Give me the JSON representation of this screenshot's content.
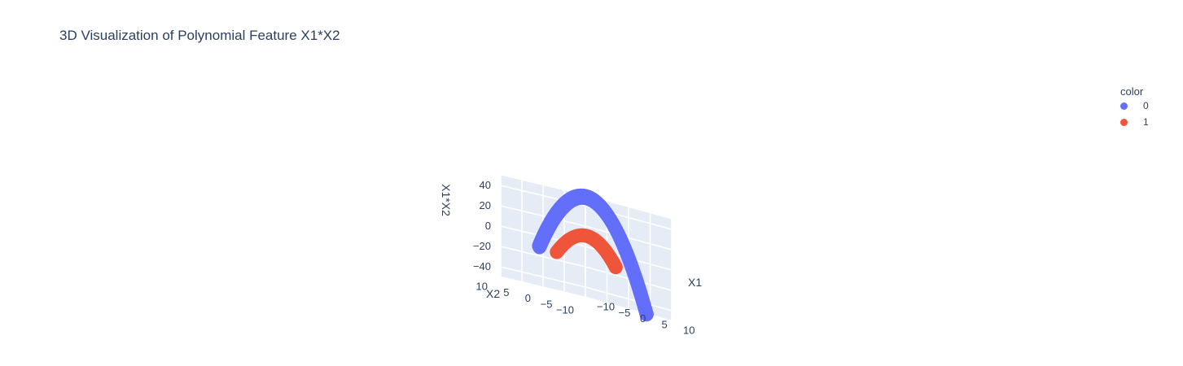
{
  "chart_data": {
    "type": "scatter",
    "title": "3D Visualization of Polynomial Feature X1*X2",
    "axes": {
      "x": {
        "label": "X1",
        "range": [
          -10,
          10
        ],
        "ticks": [
          "10",
          "5",
          "0",
          "−5",
          "−10"
        ]
      },
      "y": {
        "label": "X2",
        "range": [
          -10,
          10
        ],
        "ticks": [
          "10",
          "5",
          "0",
          "−5",
          "−10"
        ]
      },
      "z": {
        "label": "X1*X2",
        "range": [
          -50,
          50
        ],
        "ticks": [
          "40",
          "20",
          "0",
          "−20",
          "−40"
        ]
      }
    },
    "legend": {
      "title": "color",
      "position": "top-right",
      "items": [
        {
          "name": "0",
          "color": "#636efa"
        },
        {
          "name": "1",
          "color": "#ef553b"
        }
      ]
    },
    "series": [
      {
        "name": "0",
        "color": "#636efa",
        "radius": 10,
        "values": "X1=10cos(t), X2=10sin(t), z=X1*X2"
      },
      {
        "name": "1",
        "color": "#ef553b",
        "radius": 5,
        "values": "X1=5cos(t), X2=5sin(t), z=X1*X2"
      }
    ],
    "grid": true
  }
}
